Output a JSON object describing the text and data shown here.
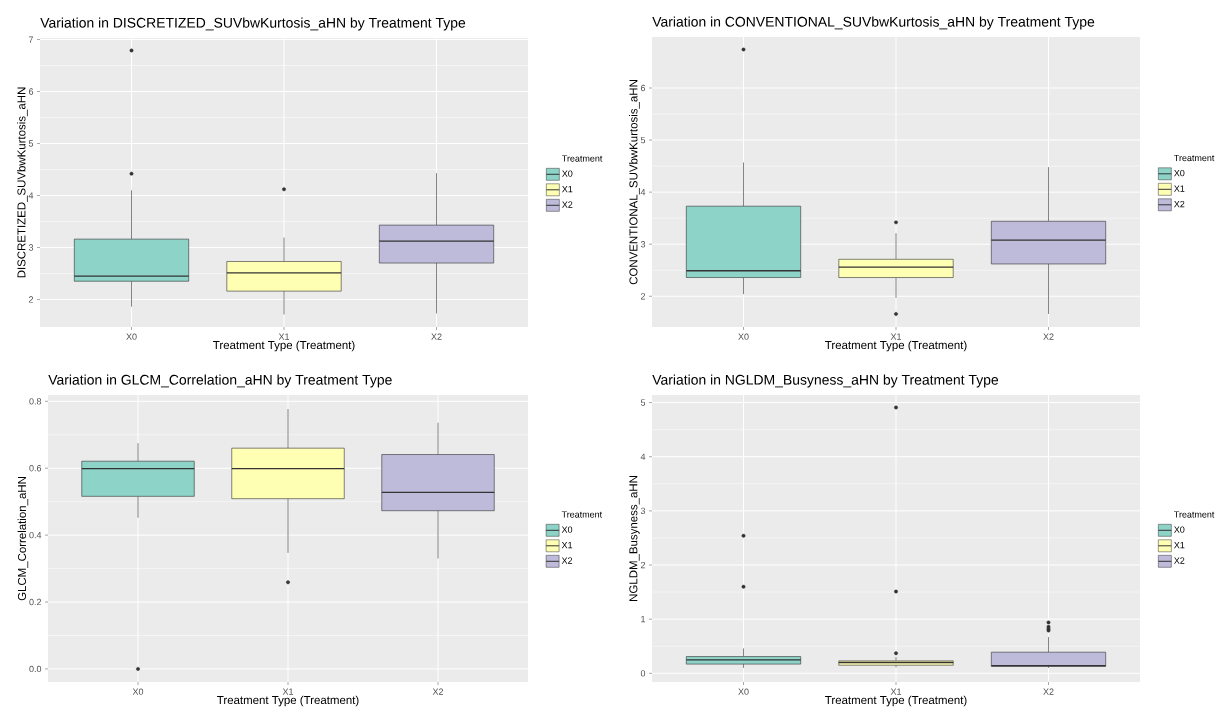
{
  "chart_data": [
    {
      "type": "box",
      "title": "Variation in DISCRETIZED_SUVbwKurtosis_aHN by Treatment Type",
      "xlabel": "Treatment Type (Treatment)",
      "ylabel": "DISCRETIZED_SUVbwKurtosis_aHN",
      "legend_title": "Treatment",
      "categories": [
        "X0",
        "X1",
        "X2"
      ],
      "series": [
        {
          "name": "X0",
          "color": "#8dd3c7",
          "boxes": [
            {
              "low": 1.86,
              "q1": 2.35,
              "median": 2.45,
              "q3": 3.16,
              "high": 4.1,
              "outliers": [
                4.42,
                6.79
              ]
            },
            null,
            null
          ]
        },
        {
          "name": "X1",
          "color": "#ffffb3",
          "boxes": [
            null,
            {
              "low": 1.71,
              "q1": 2.16,
              "median": 2.51,
              "q3": 2.73,
              "high": 3.19,
              "outliers": [
                4.12
              ]
            },
            null
          ]
        },
        {
          "name": "X2",
          "color": "#bebada",
          "boxes": [
            null,
            null,
            {
              "low": 1.73,
              "q1": 2.7,
              "median": 3.12,
              "q3": 3.43,
              "high": 4.43
            }
          ]
        }
      ],
      "ylim": [
        1.47,
        7.03
      ],
      "yticks": [
        2,
        3,
        4,
        5,
        6,
        7
      ],
      "grid": true,
      "legend": "right"
    },
    {
      "type": "box",
      "title": "Variation in CONVENTIONAL_SUVbwKurtosis_aHN by Treatment Type",
      "xlabel": "Treatment Type (Treatment)",
      "ylabel": "CONVENTIONAL_SUVbwKurtosis_aHN",
      "legend_title": "Treatment",
      "categories": [
        "X0",
        "X1",
        "X2"
      ],
      "series": [
        {
          "name": "X0",
          "color": "#8dd3c7",
          "boxes": [
            {
              "low": 2.04,
              "q1": 2.36,
              "median": 2.49,
              "q3": 3.73,
              "high": 4.57,
              "outliers": [
                6.74
              ]
            },
            null,
            null
          ]
        },
        {
          "name": "X1",
          "color": "#ffffb3",
          "boxes": [
            null,
            {
              "low": 1.97,
              "q1": 2.36,
              "median": 2.56,
              "q3": 2.71,
              "high": 3.21,
              "outliers": [
                3.42,
                1.66
              ]
            },
            null
          ]
        },
        {
          "name": "X2",
          "color": "#bebada",
          "boxes": [
            null,
            null,
            {
              "low": 1.66,
              "q1": 2.62,
              "median": 3.08,
              "q3": 3.44,
              "high": 4.48
            }
          ]
        }
      ],
      "ylim": [
        1.41,
        6.98
      ],
      "yticks": [
        2,
        3,
        4,
        5,
        6
      ],
      "grid": true,
      "legend": "right"
    },
    {
      "type": "box",
      "title": "Variation in GLCM_Correlation_aHN by Treatment Type",
      "xlabel": "Treatment Type (Treatment)",
      "ylabel": "GLCM_Correlation_aHN",
      "legend_title": "Treatment",
      "categories": [
        "X0",
        "X1",
        "X2"
      ],
      "series": [
        {
          "name": "X0",
          "color": "#8dd3c7",
          "boxes": [
            {
              "low": 0.452,
              "q1": 0.516,
              "median": 0.599,
              "q3": 0.621,
              "high": 0.675,
              "outliers": [
                0.0
              ]
            },
            null,
            null
          ]
        },
        {
          "name": "X1",
          "color": "#ffffb3",
          "boxes": [
            null,
            {
              "low": 0.347,
              "q1": 0.509,
              "median": 0.599,
              "q3": 0.66,
              "high": 0.777,
              "outliers": [
                0.259
              ]
            },
            null
          ]
        },
        {
          "name": "X2",
          "color": "#bebada",
          "boxes": [
            null,
            null,
            {
              "low": 0.33,
              "q1": 0.473,
              "median": 0.528,
              "q3": 0.641,
              "high": 0.736
            }
          ]
        }
      ],
      "ylim": [
        -0.039,
        0.819
      ],
      "yticks": [
        {
          "value": 0,
          "label": "0.0"
        },
        0.2,
        0.4,
        0.6,
        0.8
      ],
      "grid": true,
      "legend": "right"
    },
    {
      "type": "box",
      "title": "Variation in NGLDM_Busyness_aHN by Treatment Type",
      "xlabel": "Treatment Type (Treatment)",
      "ylabel": "NGLDM_Busyness_aHN",
      "legend_title": "Treatment",
      "categories": [
        "X0",
        "X1",
        "X2"
      ],
      "series": [
        {
          "name": "X0",
          "color": "#8dd3c7",
          "boxes": [
            {
              "low": 0.1,
              "q1": 0.17,
              "median": 0.25,
              "q3": 0.31,
              "high": 0.46,
              "outliers": [
                1.6,
                2.54
              ]
            },
            null,
            null
          ]
        },
        {
          "name": "X1",
          "color": "#ffffb3",
          "boxes": [
            null,
            {
              "low": 0.11,
              "q1": 0.15,
              "median": 0.2,
              "q3": 0.23,
              "high": 0.3,
              "outliers": [
                0.37,
                1.51,
                4.91
              ]
            },
            null
          ]
        },
        {
          "name": "X2",
          "color": "#bebada",
          "boxes": [
            null,
            null,
            {
              "low": 0.1,
              "q1": 0.13,
              "median": 0.14,
              "q3": 0.39,
              "high": 0.67,
              "outliers": [
                0.94,
                0.86,
                0.82,
                0.79
              ]
            }
          ]
        }
      ],
      "ylim": [
        -0.16,
        5.14
      ],
      "yticks": [
        0,
        1,
        2,
        3,
        4,
        5
      ],
      "grid": true,
      "legend": "right"
    }
  ]
}
